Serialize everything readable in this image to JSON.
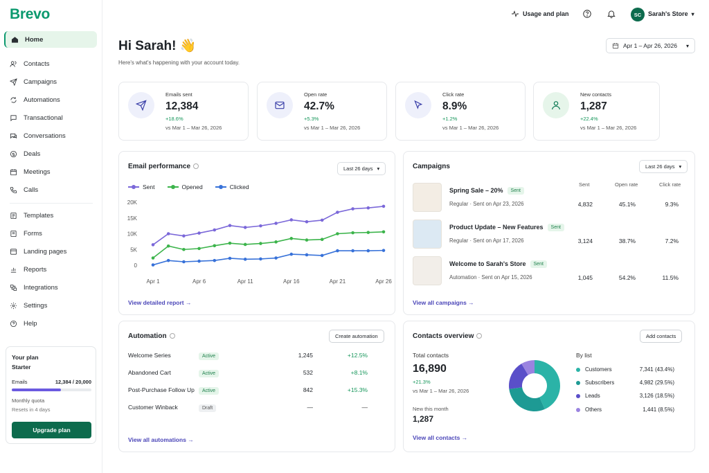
{
  "brand": {
    "name": "Brevo",
    "color": "#0b996e"
  },
  "sidebar": {
    "items": [
      {
        "label": "Home",
        "icon": "home-icon",
        "active": true
      },
      {
        "label": "Contacts",
        "icon": "contacts-icon"
      },
      {
        "label": "Campaigns",
        "icon": "send-icon"
      },
      {
        "label": "Automations",
        "icon": "automations-icon"
      },
      {
        "label": "Transactional",
        "icon": "transactional-icon"
      },
      {
        "label": "Conversations",
        "icon": "chat-icon"
      },
      {
        "label": "Deals",
        "icon": "deals-icon"
      },
      {
        "label": "Meetings",
        "icon": "calendar-icon"
      },
      {
        "label": "Calls",
        "icon": "phone-icon"
      },
      {
        "label": "Templates",
        "icon": "templates-icon"
      },
      {
        "label": "Forms",
        "icon": "forms-icon"
      },
      {
        "label": "Landing pages",
        "icon": "landing-icon"
      },
      {
        "label": "Reports",
        "icon": "reports-icon"
      },
      {
        "label": "Integrations",
        "icon": "integrations-icon"
      },
      {
        "label": "Settings",
        "icon": "gear-icon"
      },
      {
        "label": "Help",
        "icon": "help-icon"
      }
    ],
    "plan": {
      "title": "Your plan",
      "name": "Starter",
      "emails_label": "Emails",
      "emails_value": "12,384 / 20,000",
      "usage_fraction": 0.62,
      "quota_label": "Monthly quota",
      "reset_label": "Resets in 4 days",
      "upgrade_label": "Upgrade plan"
    }
  },
  "topbar": {
    "usage_label": "Usage and plan",
    "avatar_initials": "SC",
    "store_name": "Sarah's Store"
  },
  "header": {
    "greeting": "Hi Sarah! 👋",
    "subtitle": "Here's what's happening with your account today.",
    "date_range": "Apr 1 – Apr 26, 2026"
  },
  "stats": [
    {
      "label": "Emails sent",
      "value": "12,384",
      "change": "+18.6%",
      "compare": "vs Mar 1 – Mar 26, 2026",
      "icon": "send-icon",
      "tint": "#eef0fb",
      "color": "#3a3fa8"
    },
    {
      "label": "Open rate",
      "value": "42.7%",
      "change": "+5.3%",
      "compare": "vs Mar 1 – Mar 26, 2026",
      "icon": "mail-icon",
      "tint": "#eef0fb",
      "color": "#3a3fa8"
    },
    {
      "label": "Click rate",
      "value": "8.9%",
      "change": "+1.2%",
      "compare": "vs Mar 1 – Mar 26, 2026",
      "icon": "cursor-icon",
      "tint": "#eef0fb",
      "color": "#3a3fa8"
    },
    {
      "label": "New contacts",
      "value": "1,287",
      "change": "+22.4%",
      "compare": "vs Mar 1 – Mar 26, 2026",
      "icon": "user-icon",
      "tint": "#e6f5ea",
      "color": "#0d7a54"
    }
  ],
  "email_performance": {
    "title": "Email performance",
    "range": "Last 26 days",
    "link": "View detailed report →"
  },
  "chart_data": {
    "type": "line",
    "x": [
      "Apr 1",
      "Apr 3",
      "Apr 5",
      "Apr 6",
      "Apr 8",
      "Apr 10",
      "Apr 11",
      "Apr 13",
      "Apr 15",
      "Apr 16",
      "Apr 18",
      "Apr 20",
      "Apr 21",
      "Apr 23",
      "Apr 24",
      "Apr 26"
    ],
    "x_ticks": [
      "Apr 1",
      "Apr 6",
      "Apr 11",
      "Apr 16",
      "Apr 21",
      "Apr 26"
    ],
    "y_ticks": [
      "20K",
      "15K",
      "10K",
      "5K",
      "0"
    ],
    "ylim": [
      0,
      20000
    ],
    "series": [
      {
        "name": "Sent",
        "color": "#7b68d9",
        "values": [
          6500,
          10000,
          9300,
          10200,
          11200,
          12600,
          12000,
          12500,
          13300,
          14400,
          13800,
          14300,
          16800,
          17900,
          18200,
          18700
        ]
      },
      {
        "name": "Opened",
        "color": "#3cb44b",
        "values": [
          2300,
          6100,
          5000,
          5300,
          6200,
          7000,
          6600,
          6900,
          7400,
          8500,
          8000,
          8200,
          10000,
          10300,
          10400,
          10600
        ]
      },
      {
        "name": "Clicked",
        "color": "#3872d9",
        "values": [
          100,
          1500,
          1100,
          1300,
          1500,
          2200,
          1900,
          2000,
          2300,
          3500,
          3300,
          3100,
          4600,
          4600,
          4600,
          4700
        ]
      }
    ],
    "grid": false,
    "legend": "top-left"
  },
  "campaigns": {
    "title": "Campaigns",
    "range": "Last 26 days",
    "headers": {
      "sent": "Sent",
      "open": "Open rate",
      "click": "Click rate"
    },
    "rows": [
      {
        "name": "Spring Sale – 20%",
        "status": "Sent",
        "meta": "Regular · Sent on Apr 23, 2026",
        "sent": "4,832",
        "open": "45.1%",
        "click": "9.3%",
        "thumb": "#f3ede4"
      },
      {
        "name": "Product Update – New Features",
        "status": "Sent",
        "meta": "Regular · Sent on Apr 17, 2026",
        "sent": "3,124",
        "open": "38.7%",
        "click": "7.2%",
        "thumb": "#dce9f3"
      },
      {
        "name": "Welcome to Sarah's Store",
        "status": "Sent",
        "meta": "Automation · Sent on Apr 15, 2026",
        "sent": "1,045",
        "open": "54.2%",
        "click": "11.5%",
        "thumb": "#f2eee9"
      }
    ],
    "link": "View all campaigns →"
  },
  "automation": {
    "title": "Automation",
    "create_label": "Create automation",
    "rows": [
      {
        "name": "Welcome Series",
        "status": "Active",
        "count": "1,245",
        "change": "+12.5%"
      },
      {
        "name": "Abandoned Cart",
        "status": "Active",
        "count": "532",
        "change": "+8.1%"
      },
      {
        "name": "Post-Purchase Follow Up",
        "status": "Active",
        "count": "842",
        "change": "+15.3%"
      },
      {
        "name": "Customer Winback",
        "status": "Draft",
        "count": "—",
        "change": "—"
      }
    ],
    "link": "View all automations →"
  },
  "contacts_overview": {
    "title": "Contacts overview",
    "add_label": "Add contacts",
    "total_label": "Total contacts",
    "total": "16,890",
    "change": "+21.3%",
    "compare": "vs Mar 1 – Mar 26, 2026",
    "new_label": "New this month",
    "new_value": "1,287",
    "by_list_label": "By list",
    "lists": [
      {
        "name": "Customers",
        "value": "7,341 (43.4%)",
        "pct": 43.4,
        "color": "#2bb3a7"
      },
      {
        "name": "Subscribers",
        "value": "4,982 (29.5%)",
        "pct": 29.5,
        "color": "#1d9a94"
      },
      {
        "name": "Leads",
        "value": "3,126 (18.5%)",
        "pct": 18.5,
        "color": "#5a4fc9"
      },
      {
        "name": "Others",
        "value": "1,441 (8.5%)",
        "pct": 8.5,
        "color": "#9a83e0"
      }
    ],
    "link": "View all contacts →"
  }
}
